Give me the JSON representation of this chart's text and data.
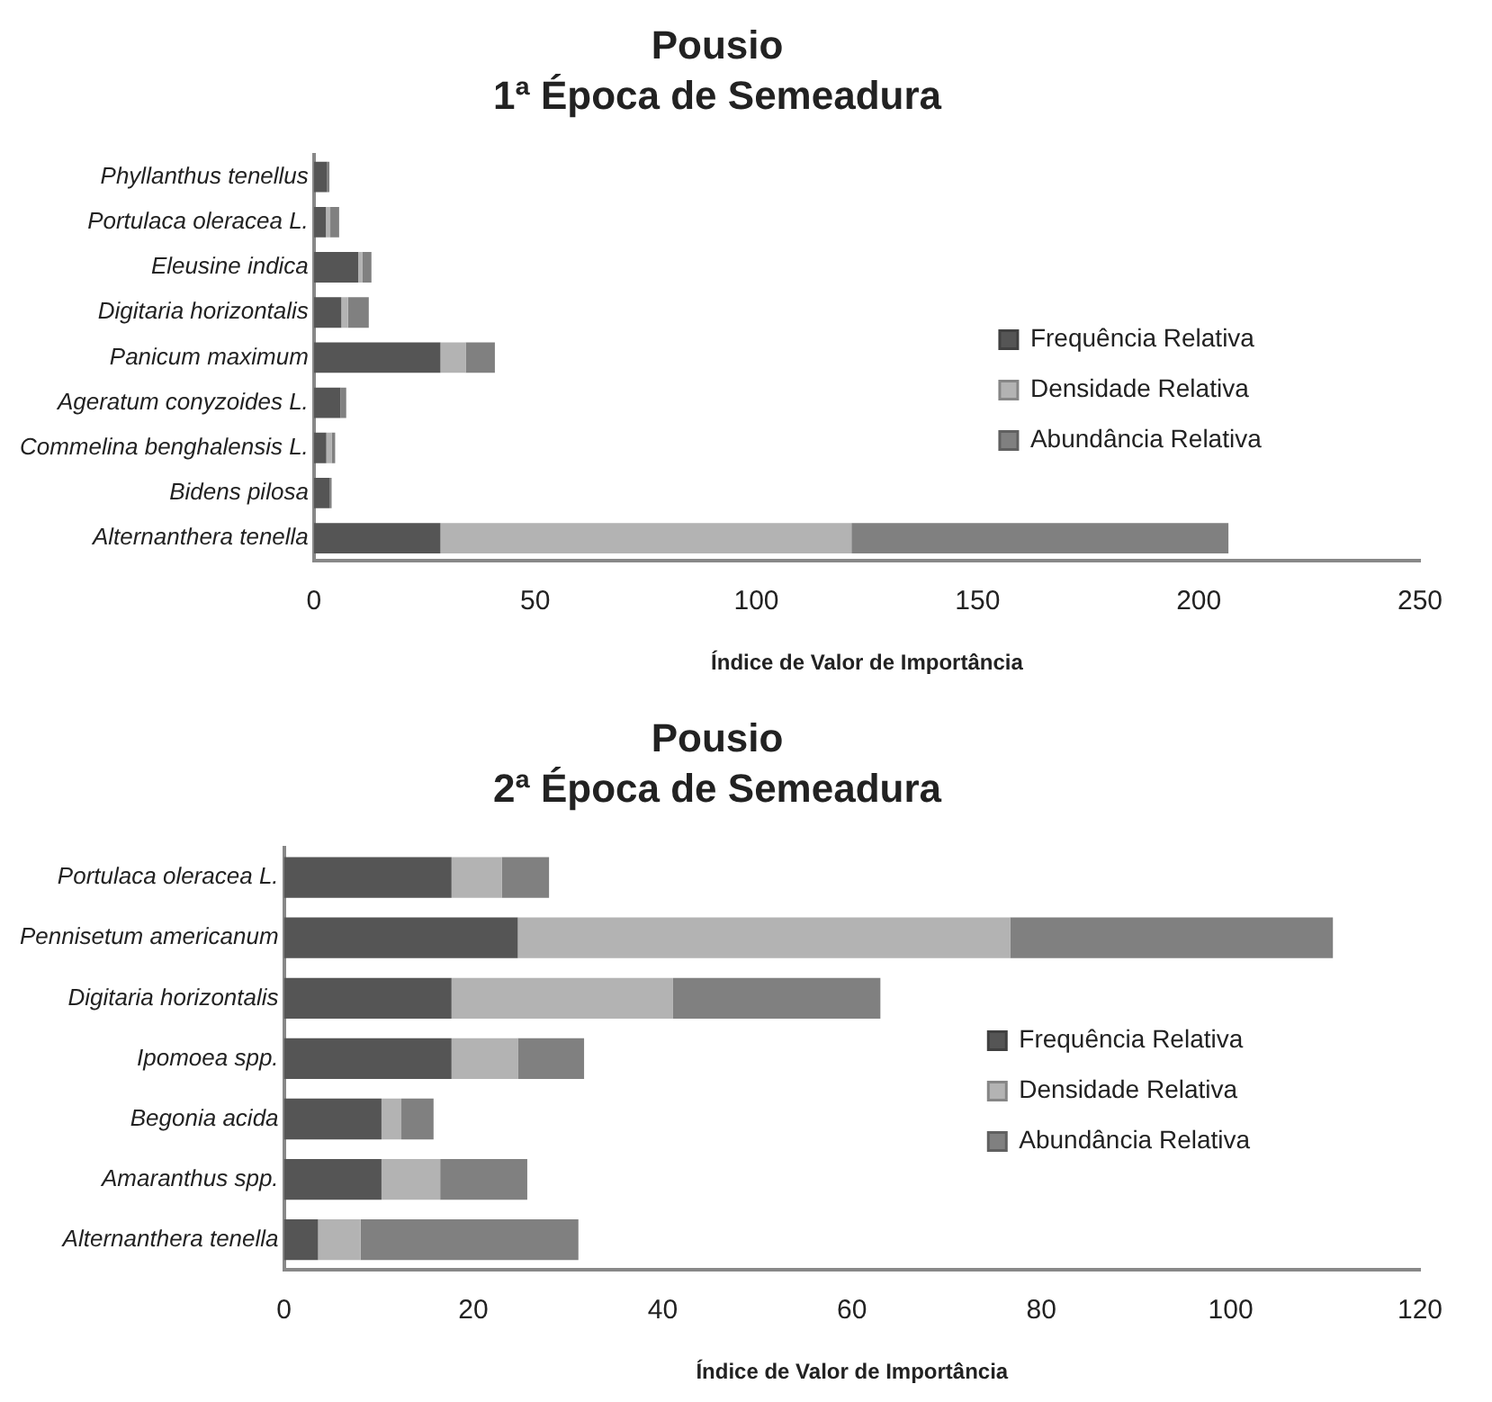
{
  "chart_data": [
    {
      "type": "bar",
      "title": "Pousio",
      "subtitle": "1ª Época de Semeadura",
      "xlabel": "Índice de Valor de Importância",
      "orientation": "horizontal",
      "stacked": true,
      "legend": "right",
      "grid": false,
      "categories": [
        "Phyllanthus tenellus",
        "Portulaca oleracea L.",
        "Eleusine indica",
        "Digitaria horizontalis",
        "Panicum maximum",
        "Ageratum conyzoides L.",
        "Commelina benghalensis L.",
        "Bidens pilosa",
        "Alternanthera tenella"
      ],
      "xlim": [
        0,
        250
      ],
      "xticks": [
        0,
        50,
        100,
        150,
        200,
        250
      ],
      "series": [
        {
          "name": "Frequência Relativa",
          "color": "#555555",
          "values": [
            3,
            2.7,
            10,
            6.2,
            28.6,
            6,
            2.8,
            3.5,
            28.6
          ]
        },
        {
          "name": "Densidade Relativa",
          "color": "#b3b3b3",
          "values": [
            null,
            1,
            1,
            1.5,
            5.7,
            null,
            1.2,
            null,
            92.9
          ]
        },
        {
          "name": "Abundância Relativa",
          "color": "#808080",
          "values": [
            0.5,
            2,
            2,
            4.7,
            6.6,
            1.3,
            0.8,
            0.5,
            85.2
          ]
        }
      ]
    },
    {
      "type": "bar",
      "title": "Pousio",
      "subtitle": "2ª Época de Semeadura",
      "xlabel": "Índice de Valor de Importância",
      "orientation": "horizontal",
      "stacked": true,
      "legend": "right",
      "grid": false,
      "categories": [
        "Portulaca oleracea L.",
        "Pennisetum americanum",
        "Digitaria horizontalis",
        "Ipomoea spp.",
        "Begonia acida",
        "Amaranthus spp.",
        "Alternanthera tenella"
      ],
      "xlim": [
        0,
        120
      ],
      "xticks": [
        0,
        20,
        40,
        60,
        80,
        100,
        120
      ],
      "series": [
        {
          "name": "Frequência Relativa",
          "color": "#555555",
          "values": [
            17.7,
            24.7,
            17.7,
            17.7,
            10.3,
            10.3,
            3.6
          ]
        },
        {
          "name": "Densidade Relativa",
          "color": "#b3b3b3",
          "values": [
            5.3,
            52,
            23.4,
            7,
            2.1,
            6.2,
            4.5
          ]
        },
        {
          "name": "Abundância Relativa",
          "color": "#808080",
          "values": [
            5,
            34.1,
            21.9,
            7,
            3.4,
            9.2,
            23
          ]
        }
      ]
    }
  ]
}
